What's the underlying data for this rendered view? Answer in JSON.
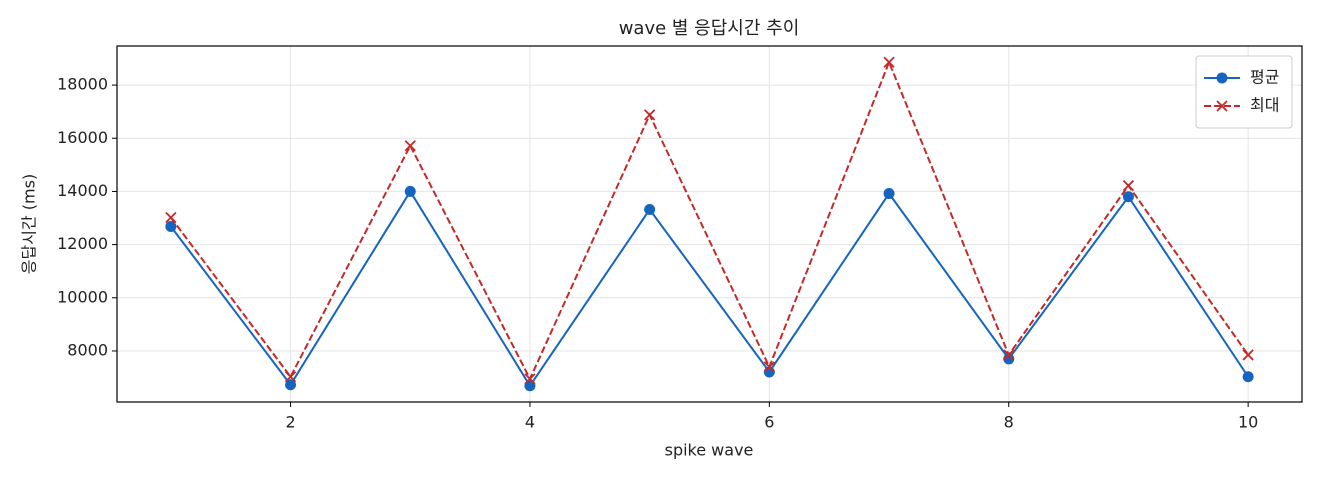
{
  "chart_data": {
    "type": "line",
    "title": "wave 별 응답시간 추이",
    "xlabel": "spike wave",
    "ylabel": "응답시간 (ms)",
    "x": [
      1,
      2,
      3,
      4,
      5,
      6,
      7,
      8,
      9,
      10
    ],
    "series": [
      {
        "name": "평균",
        "color": "#1565c0",
        "marker": "o",
        "linestyle": "solid",
        "values": [
          12680,
          6730,
          14000,
          6690,
          13320,
          7210,
          13920,
          7700,
          13800,
          7030
        ]
      },
      {
        "name": "최대",
        "color": "#c62828",
        "marker": "x",
        "linestyle": "dashed",
        "values": [
          13020,
          7030,
          15720,
          6950,
          16880,
          7400,
          18860,
          7850,
          14220,
          7850
        ]
      }
    ],
    "xlim": [
      0.55,
      10.45
    ],
    "xticks": [
      2,
      4,
      6,
      8,
      10
    ],
    "ylim": [
      6080,
      19470
    ],
    "yticks": [
      8000,
      10000,
      12000,
      14000,
      16000,
      18000
    ],
    "grid": true,
    "legend": "upper right"
  }
}
